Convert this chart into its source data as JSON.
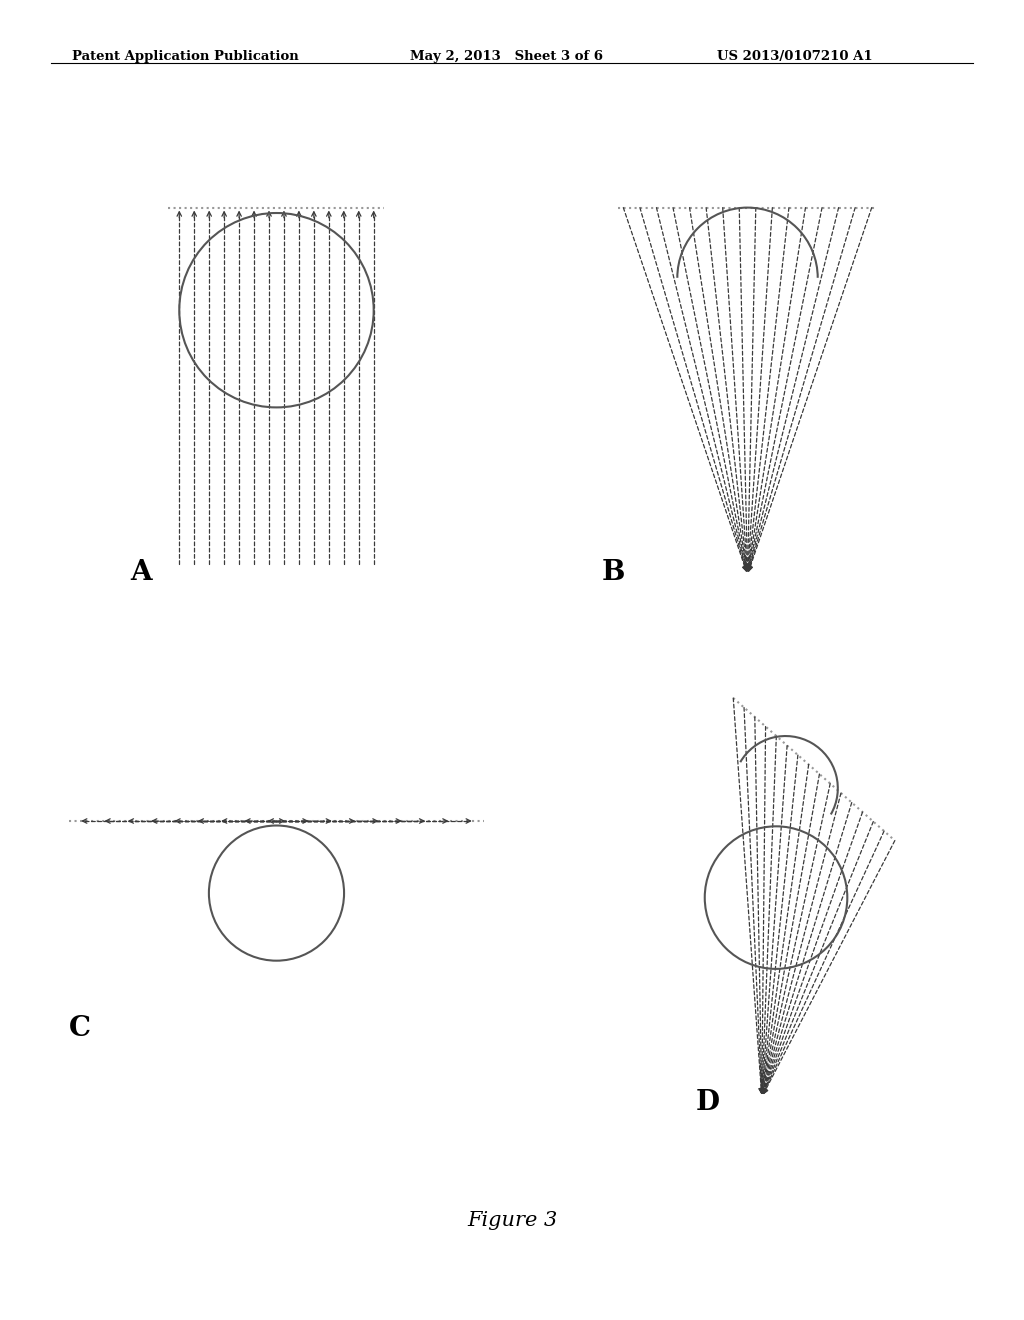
{
  "background_color": "#ffffff",
  "header_left": "Patent Application Publication",
  "header_mid": "May 2, 2013   Sheet 3 of 6",
  "header_right": "US 2013/0107210 A1",
  "figure_label": "Figure 3",
  "labels": [
    "A",
    "B",
    "C",
    "D"
  ],
  "arrow_color": "#3a3a3a",
  "circle_color": "#555555",
  "dotted_line_color": "#999999"
}
